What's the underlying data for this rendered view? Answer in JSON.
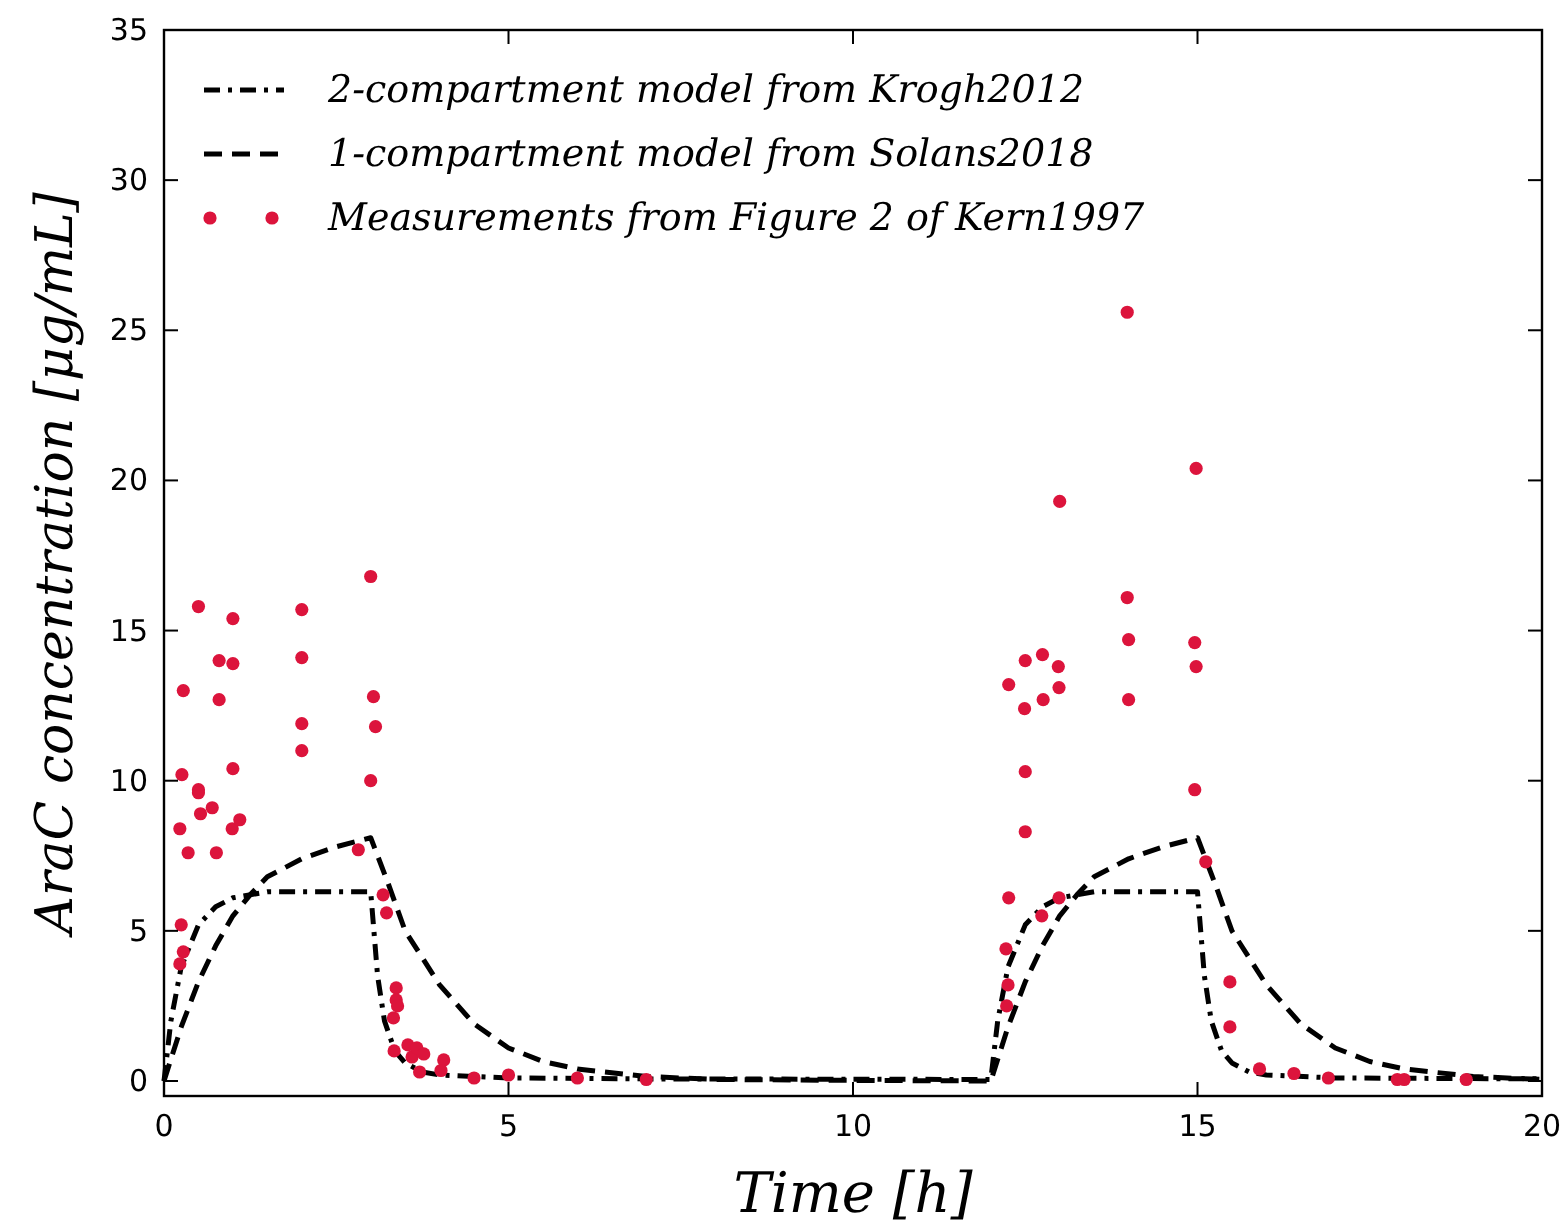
{
  "chart_data": {
    "type": "line",
    "xlabel": "Time [h]",
    "ylabel": "AraC concentration [μg/mL]",
    "xlim": [
      0,
      20
    ],
    "xticks": [
      0,
      5,
      10,
      15,
      20
    ],
    "ylim": [
      -0.5,
      35
    ],
    "yticks": [
      0,
      5,
      10,
      15,
      20,
      25,
      30,
      35
    ],
    "grid": false,
    "legend": "top left",
    "series": [
      {
        "name": "2-compartment model from Krogh2012",
        "type": "line",
        "line_style": "dashdot",
        "color": "#000000",
        "x": [
          0,
          0.1,
          0.25,
          0.5,
          0.75,
          1,
          1.5,
          3,
          3.1,
          3.2,
          3.35,
          3.5,
          3.75,
          4,
          5,
          7,
          12,
          12.1,
          12.25,
          12.5,
          12.75,
          13,
          13.5,
          15,
          15.1,
          15.2,
          15.35,
          15.5,
          15.75,
          16,
          17,
          20
        ],
        "values": [
          0,
          2.0,
          3.8,
          5.2,
          5.8,
          6.1,
          6.3,
          6.3,
          3.5,
          2.0,
          1.0,
          0.6,
          0.3,
          0.2,
          0.1,
          0.07,
          0.05,
          2.0,
          3.8,
          5.2,
          5.8,
          6.1,
          6.3,
          6.3,
          3.5,
          2.0,
          1.0,
          0.6,
          0.3,
          0.2,
          0.1,
          0.07
        ]
      },
      {
        "name": "1-compartment model from Solans2018",
        "type": "line",
        "line_style": "dashed",
        "color": "#000000",
        "x": [
          0,
          0.25,
          0.5,
          0.75,
          1,
          1.25,
          1.5,
          2,
          2.5,
          3,
          3.25,
          3.5,
          4,
          4.5,
          5,
          5.5,
          6,
          7,
          8,
          10,
          12,
          12.25,
          12.5,
          12.75,
          13,
          13.25,
          13.5,
          14,
          14.5,
          15,
          15.25,
          15.5,
          16,
          16.5,
          17,
          17.5,
          18,
          19,
          20
        ],
        "values": [
          0,
          1.8,
          3.3,
          4.5,
          5.5,
          6.2,
          6.8,
          7.4,
          7.8,
          8.1,
          6.6,
          5.0,
          3.2,
          1.9,
          1.1,
          0.65,
          0.4,
          0.15,
          0.05,
          0.02,
          0,
          1.8,
          3.3,
          4.5,
          5.5,
          6.2,
          6.8,
          7.4,
          7.8,
          8.1,
          6.6,
          5.0,
          3.2,
          1.9,
          1.1,
          0.65,
          0.4,
          0.15,
          0.05
        ]
      },
      {
        "name": "Measurements from Figure 2 of Kern1997",
        "type": "scatter",
        "marker": "circle",
        "color": "#dc143c",
        "x": [
          0.5,
          1.0,
          2.0,
          3.0,
          0.8,
          1.0,
          2.0,
          0.28,
          0.8,
          3.04,
          3.07,
          2.0,
          2.0,
          0.26,
          1.0,
          3.0,
          0.5,
          0.5,
          0.7,
          0.53,
          0.23,
          0.99,
          1.1,
          0.35,
          0.76,
          2.82,
          3.18,
          3.23,
          0.25,
          0.28,
          0.23,
          3.37,
          3.37,
          3.39,
          3.33,
          3.34,
          3.54,
          3.6,
          3.67,
          3.77,
          4.06,
          4.02,
          3.71,
          4.5,
          5.0,
          6.0,
          7.0,
          13.98,
          14.98,
          13.0,
          13.98,
          14.0,
          14.96,
          14.98,
          12.5,
          12.75,
          12.98,
          12.26,
          12.99,
          12.49,
          12.76,
          14.0,
          12.5,
          14.96,
          12.5,
          15.12,
          12.26,
          12.99,
          12.74,
          12.22,
          12.25,
          12.23,
          15.47,
          15.47,
          15.9,
          16.4,
          16.9,
          17.9,
          18.0,
          18.9
        ],
        "values": [
          15.8,
          15.4,
          15.7,
          16.8,
          14.0,
          13.9,
          14.1,
          13.0,
          12.7,
          12.8,
          11.8,
          11.9,
          11.0,
          10.2,
          10.4,
          10.0,
          9.7,
          9.6,
          9.1,
          8.9,
          8.4,
          8.4,
          8.7,
          7.6,
          7.6,
          7.7,
          6.2,
          5.6,
          5.2,
          4.3,
          3.9,
          3.1,
          2.7,
          2.5,
          2.1,
          1.0,
          1.2,
          0.8,
          1.1,
          0.9,
          0.7,
          0.35,
          0.3,
          0.1,
          0.2,
          0.1,
          0.05,
          25.6,
          20.4,
          19.3,
          16.1,
          14.7,
          14.6,
          13.8,
          14.0,
          14.2,
          13.8,
          13.2,
          13.1,
          12.4,
          12.7,
          12.7,
          10.3,
          9.7,
          8.3,
          7.3,
          6.1,
          6.1,
          5.5,
          4.4,
          3.2,
          2.5,
          3.3,
          1.8,
          0.4,
          0.25,
          0.1,
          0.05,
          0.05,
          0.05
        ]
      }
    ]
  }
}
